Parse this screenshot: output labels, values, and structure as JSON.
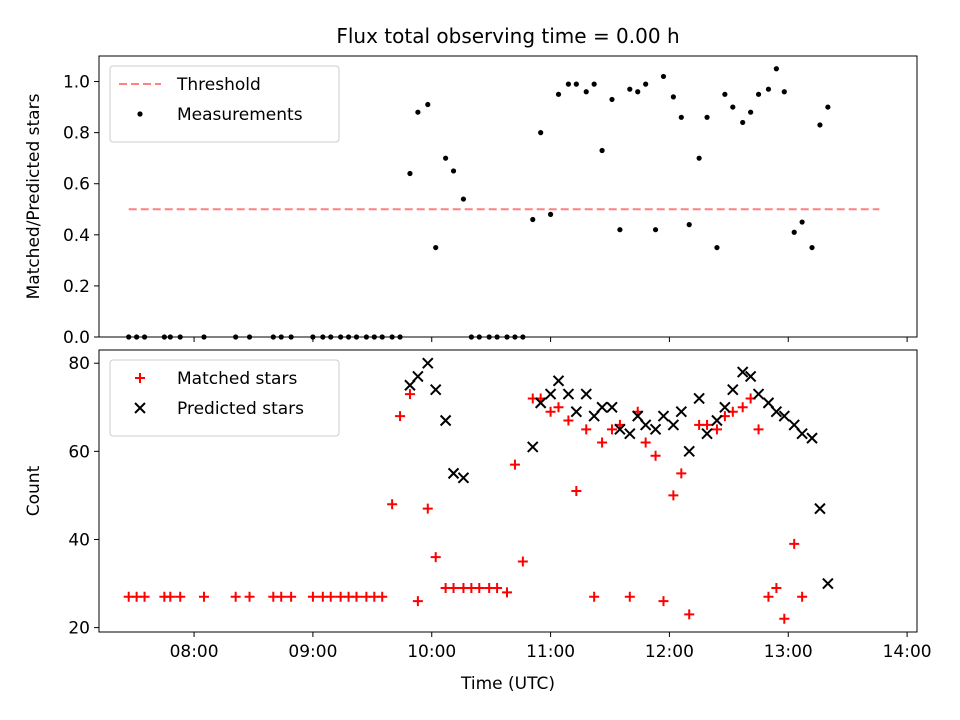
{
  "chart_data": [
    {
      "type": "scatter",
      "title": "Flux total observing time = 0.00 h",
      "ylabel": "Matched/Predicted stars",
      "xlabel": "",
      "xlim": [
        "07:12",
        "14:05"
      ],
      "ylim": [
        0,
        1.1
      ],
      "yticks": [
        0.0,
        0.2,
        0.4,
        0.6,
        0.8,
        1.0
      ],
      "ytick_labels": [
        "0.0",
        "0.2",
        "0.4",
        "0.6",
        "0.8",
        "1.0"
      ],
      "xticks": [
        "08:00",
        "09:00",
        "10:00",
        "11:00",
        "12:00",
        "13:00",
        "14:00"
      ],
      "xtick_labels": [],
      "legend": "top-left",
      "threshold": {
        "name": "Threshold",
        "value": 0.5,
        "x_range": [
          "07:27",
          "13:46"
        ],
        "color": "#ff8080",
        "style": "dashed"
      },
      "series": [
        {
          "name": "Measurements",
          "color": "#000000",
          "marker": "dot",
          "points": [
            [
              "07:27",
              0
            ],
            [
              "07:31",
              0
            ],
            [
              "07:35",
              0
            ],
            [
              "07:45",
              0
            ],
            [
              "07:48",
              0
            ],
            [
              "07:53",
              0
            ],
            [
              "08:05",
              0
            ],
            [
              "08:21",
              0
            ],
            [
              "08:28",
              0
            ],
            [
              "08:40",
              0
            ],
            [
              "08:44",
              0
            ],
            [
              "08:49",
              0
            ],
            [
              "09:00",
              0
            ],
            [
              "09:05",
              0
            ],
            [
              "09:09",
              0
            ],
            [
              "09:14",
              0
            ],
            [
              "09:18",
              0
            ],
            [
              "09:22",
              0
            ],
            [
              "09:27",
              0
            ],
            [
              "09:31",
              0
            ],
            [
              "09:35",
              0
            ],
            [
              "09:40",
              0
            ],
            [
              "09:44",
              0
            ],
            [
              "09:49",
              0.64
            ],
            [
              "09:53",
              0.88
            ],
            [
              "09:58",
              0.91
            ],
            [
              "10:02",
              0.35
            ],
            [
              "10:07",
              0.7
            ],
            [
              "10:11",
              0.65
            ],
            [
              "10:16",
              0.54
            ],
            [
              "10:20",
              0
            ],
            [
              "10:24",
              0
            ],
            [
              "10:29",
              0
            ],
            [
              "10:33",
              0
            ],
            [
              "10:38",
              0
            ],
            [
              "10:42",
              0
            ],
            [
              "10:46",
              0
            ],
            [
              "10:51",
              0.46
            ],
            [
              "10:55",
              0.8
            ],
            [
              "11:00",
              0.48
            ],
            [
              "11:04",
              0.95
            ],
            [
              "11:09",
              0.99
            ],
            [
              "11:13",
              0.99
            ],
            [
              "11:18",
              0.96
            ],
            [
              "11:22",
              0.99
            ],
            [
              "11:26",
              0.73
            ],
            [
              "11:31",
              0.93
            ],
            [
              "11:35",
              0.42
            ],
            [
              "11:40",
              0.97
            ],
            [
              "11:44",
              0.96
            ],
            [
              "11:48",
              0.99
            ],
            [
              "11:53",
              0.42
            ],
            [
              "11:57",
              1.02
            ],
            [
              "12:02",
              0.94
            ],
            [
              "12:06",
              0.86
            ],
            [
              "12:10",
              0.44
            ],
            [
              "12:15",
              0.7
            ],
            [
              "12:19",
              0.86
            ],
            [
              "12:24",
              0.35
            ],
            [
              "12:28",
              0.95
            ],
            [
              "12:32",
              0.9
            ],
            [
              "12:37",
              0.84
            ],
            [
              "12:41",
              0.88
            ],
            [
              "12:45",
              0.95
            ],
            [
              "12:50",
              0.97
            ],
            [
              "12:54",
              1.05
            ],
            [
              "12:58",
              0.96
            ],
            [
              "13:03",
              0.41
            ],
            [
              "13:07",
              0.45
            ],
            [
              "13:12",
              0.35
            ],
            [
              "13:16",
              0.83
            ],
            [
              "13:20",
              0.9
            ]
          ]
        }
      ]
    },
    {
      "type": "scatter",
      "title": "",
      "xlabel": "Time (UTC)",
      "ylabel": "Count",
      "xlim": [
        "07:12",
        "14:05"
      ],
      "ylim": [
        19,
        83
      ],
      "yticks": [
        20,
        40,
        60,
        80
      ],
      "ytick_labels": [
        "20",
        "40",
        "60",
        "80"
      ],
      "xticks": [
        "08:00",
        "09:00",
        "10:00",
        "11:00",
        "12:00",
        "13:00",
        "14:00"
      ],
      "xtick_labels": [
        "08:00",
        "09:00",
        "10:00",
        "11:00",
        "12:00",
        "13:00",
        "14:00"
      ],
      "legend": "top-left",
      "series": [
        {
          "name": "Matched stars",
          "color": "#ff0000",
          "marker": "plus",
          "points": [
            [
              "07:27",
              27
            ],
            [
              "07:31",
              27
            ],
            [
              "07:35",
              27
            ],
            [
              "07:45",
              27
            ],
            [
              "07:48",
              27
            ],
            [
              "07:53",
              27
            ],
            [
              "08:05",
              27
            ],
            [
              "08:21",
              27
            ],
            [
              "08:28",
              27
            ],
            [
              "08:40",
              27
            ],
            [
              "08:44",
              27
            ],
            [
              "08:49",
              27
            ],
            [
              "09:00",
              27
            ],
            [
              "09:05",
              27
            ],
            [
              "09:09",
              27
            ],
            [
              "09:14",
              27
            ],
            [
              "09:18",
              27
            ],
            [
              "09:22",
              27
            ],
            [
              "09:27",
              27
            ],
            [
              "09:31",
              27
            ],
            [
              "09:35",
              27
            ],
            [
              "09:40",
              48
            ],
            [
              "09:44",
              68
            ],
            [
              "09:49",
              73
            ],
            [
              "09:53",
              26
            ],
            [
              "09:58",
              47
            ],
            [
              "10:02",
              36
            ],
            [
              "10:07",
              29
            ],
            [
              "10:11",
              29
            ],
            [
              "10:16",
              29
            ],
            [
              "10:20",
              29
            ],
            [
              "10:24",
              29
            ],
            [
              "10:29",
              29
            ],
            [
              "10:33",
              29
            ],
            [
              "10:38",
              28
            ],
            [
              "10:42",
              57
            ],
            [
              "10:46",
              35
            ],
            [
              "10:51",
              72
            ],
            [
              "10:55",
              72
            ],
            [
              "11:00",
              69
            ],
            [
              "11:04",
              70
            ],
            [
              "11:09",
              67
            ],
            [
              "11:13",
              51
            ],
            [
              "11:18",
              65
            ],
            [
              "11:22",
              27
            ],
            [
              "11:26",
              62
            ],
            [
              "11:31",
              65
            ],
            [
              "11:35",
              66
            ],
            [
              "11:40",
              27
            ],
            [
              "11:44",
              69
            ],
            [
              "11:48",
              62
            ],
            [
              "11:53",
              59
            ],
            [
              "11:57",
              26
            ],
            [
              "12:02",
              50
            ],
            [
              "12:06",
              55
            ],
            [
              "12:10",
              23
            ],
            [
              "12:15",
              66
            ],
            [
              "12:19",
              66
            ],
            [
              "12:24",
              65
            ],
            [
              "12:28",
              68
            ],
            [
              "12:32",
              69
            ],
            [
              "12:37",
              70
            ],
            [
              "12:41",
              72
            ],
            [
              "12:45",
              65
            ],
            [
              "12:50",
              27
            ],
            [
              "12:54",
              29
            ],
            [
              "12:58",
              22
            ],
            [
              "13:03",
              39
            ],
            [
              "13:07",
              27
            ]
          ]
        },
        {
          "name": "Predicted stars",
          "color": "#000000",
          "marker": "x",
          "points": [
            [
              "09:49",
              75
            ],
            [
              "09:53",
              77
            ],
            [
              "09:58",
              80
            ],
            [
              "10:02",
              74
            ],
            [
              "10:07",
              67
            ],
            [
              "10:11",
              55
            ],
            [
              "10:16",
              54
            ],
            [
              "10:51",
              61
            ],
            [
              "10:55",
              71
            ],
            [
              "11:00",
              73
            ],
            [
              "11:04",
              76
            ],
            [
              "11:09",
              73
            ],
            [
              "11:13",
              69
            ],
            [
              "11:18",
              73
            ],
            [
              "11:22",
              68
            ],
            [
              "11:26",
              70
            ],
            [
              "11:31",
              70
            ],
            [
              "11:35",
              65
            ],
            [
              "11:40",
              64
            ],
            [
              "11:44",
              68
            ],
            [
              "11:48",
              66
            ],
            [
              "11:53",
              65
            ],
            [
              "11:57",
              68
            ],
            [
              "12:02",
              66
            ],
            [
              "12:06",
              69
            ],
            [
              "12:10",
              60
            ],
            [
              "12:15",
              72
            ],
            [
              "12:19",
              64
            ],
            [
              "12:24",
              67
            ],
            [
              "12:28",
              70
            ],
            [
              "12:32",
              74
            ],
            [
              "12:37",
              78
            ],
            [
              "12:41",
              77
            ],
            [
              "12:45",
              73
            ],
            [
              "12:50",
              71
            ],
            [
              "12:54",
              69
            ],
            [
              "12:58",
              68
            ],
            [
              "13:03",
              66
            ],
            [
              "13:07",
              64
            ],
            [
              "13:12",
              63
            ],
            [
              "13:16",
              47
            ],
            [
              "13:20",
              30
            ]
          ]
        }
      ]
    }
  ]
}
